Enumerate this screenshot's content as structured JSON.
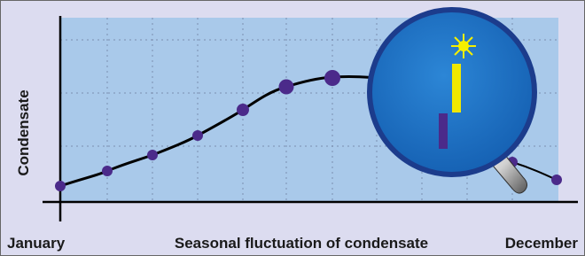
{
  "y_axis_label": "Condensate",
  "x_start_label": "January",
  "x_title": "Seasonal fluctuation of condensate",
  "x_end_label": "December"
}
